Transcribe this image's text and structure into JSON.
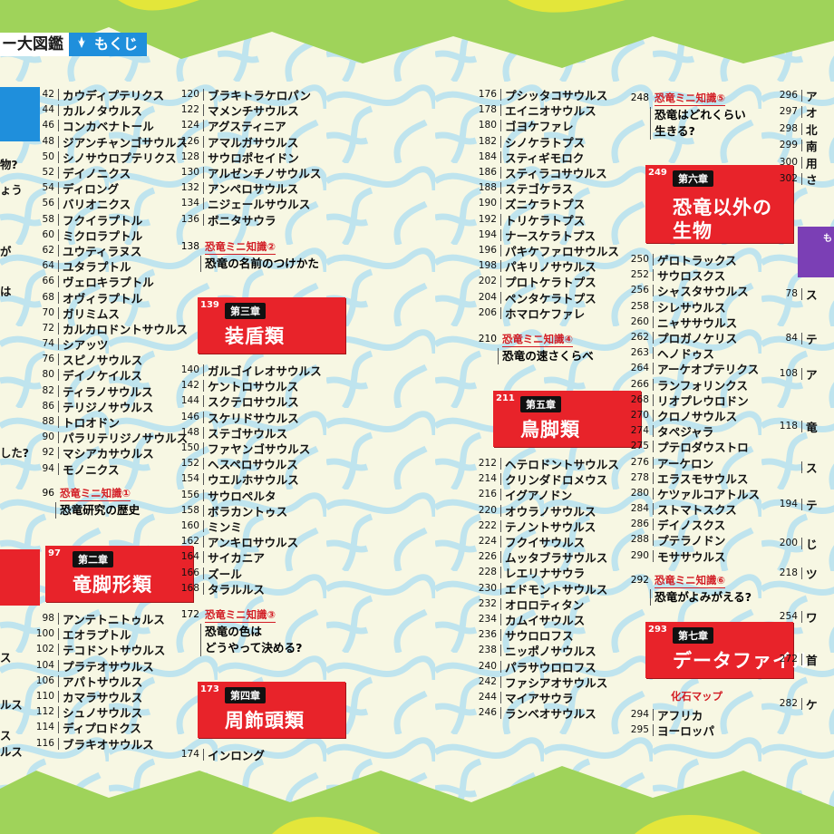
{
  "header": {
    "book_title": "ー大図鑑",
    "contents_label": "もくじ",
    "icon": "dino-foot-icon"
  },
  "left_edge": [
    "物?",
    "ょう",
    "が",
    "は",
    "した?",
    "ス",
    "ルス",
    "ス",
    "ルス"
  ],
  "right_edge": {
    "pages": [
      "296",
      "297",
      "298",
      "299",
      "300",
      "302"
    ],
    "texts": [
      "ア",
      "オ",
      "北",
      "南",
      "用",
      "さ"
    ],
    "lower": [
      {
        "p": "78",
        "t": "ス"
      },
      {
        "p": "84",
        "t": "テ"
      },
      {
        "p": "108",
        "t": "ア"
      },
      {
        "p": "118",
        "t": "竜"
      },
      {
        "p": "",
        "t": "ス"
      },
      {
        "p": "194",
        "t": "テ"
      },
      {
        "p": "200",
        "t": "じ"
      },
      {
        "p": "218",
        "t": "ツ"
      },
      {
        "p": "254",
        "t": "ワ"
      },
      {
        "p": "272",
        "t": "首"
      },
      {
        "p": "282",
        "t": "ケ"
      }
    ],
    "purple_label": "も"
  },
  "col1": [
    {
      "p": "42",
      "t": "カウディプテリクス"
    },
    {
      "p": "44",
      "t": "カルノタウルス"
    },
    {
      "p": "46",
      "t": "コンカベナトール"
    },
    {
      "p": "48",
      "t": "ジアンチャンゴサウルス"
    },
    {
      "p": "50",
      "t": "シノサウロプテリクス"
    },
    {
      "p": "52",
      "t": "デイノニクス"
    },
    {
      "p": "54",
      "t": "ディロング"
    },
    {
      "p": "56",
      "t": "バリオニクス"
    },
    {
      "p": "58",
      "t": "フクイラプトル"
    },
    {
      "p": "60",
      "t": "ミクロラプトル"
    },
    {
      "p": "62",
      "t": "ユウティラヌス"
    },
    {
      "p": "64",
      "t": "ユタラプトル"
    },
    {
      "p": "66",
      "t": "ヴェロキラプトル"
    },
    {
      "p": "68",
      "t": "オヴィラプトル"
    },
    {
      "p": "70",
      "t": "ガリミムス"
    },
    {
      "p": "72",
      "t": "カルカロドントサウルス"
    },
    {
      "p": "74",
      "t": "シアッツ"
    },
    {
      "p": "76",
      "t": "スピノサウルス"
    },
    {
      "p": "80",
      "t": "デイノケイルス"
    },
    {
      "p": "82",
      "t": "ティラノサウルス"
    },
    {
      "p": "86",
      "t": "テリジノサウルス"
    },
    {
      "p": "88",
      "t": "トロオドン"
    },
    {
      "p": "90",
      "t": "パラリテリジノサウルス"
    },
    {
      "p": "92",
      "t": "マシアカサウルス"
    },
    {
      "p": "94",
      "t": "モノニクス"
    }
  ],
  "col1_mini": {
    "p": "96",
    "label": "恐竜ミニ知識①",
    "text": "恐竜研究の歴史"
  },
  "ch2": {
    "num": "97",
    "badge": "第二章",
    "title": "竜脚形類"
  },
  "col1b": [
    {
      "p": "98",
      "t": "アンテトニトゥルス"
    },
    {
      "p": "100",
      "t": "エオラプトル"
    },
    {
      "p": "102",
      "t": "テコドントサウルス"
    },
    {
      "p": "104",
      "t": "プラテオサウルス"
    },
    {
      "p": "106",
      "t": "アパトサウルス"
    },
    {
      "p": "110",
      "t": "カマラサウルス"
    },
    {
      "p": "112",
      "t": "シュノサウルス"
    },
    {
      "p": "114",
      "t": "ディプロドクス"
    },
    {
      "p": "116",
      "t": "ブラキオサウルス"
    }
  ],
  "col2": [
    {
      "p": "120",
      "t": "ブラキトラケロパン"
    },
    {
      "p": "122",
      "t": "マメンチサウルス"
    },
    {
      "p": "124",
      "t": "アグスティニア"
    },
    {
      "p": "126",
      "t": "アマルガサウルス"
    },
    {
      "p": "128",
      "t": "サウロポセイドン"
    },
    {
      "p": "130",
      "t": "アルゼンチノサウルス"
    },
    {
      "p": "132",
      "t": "アンペロサウルス"
    },
    {
      "p": "134",
      "t": "ニジェールサウルス"
    },
    {
      "p": "136",
      "t": "ボニタサウラ"
    }
  ],
  "col2_mini": {
    "p": "138",
    "label": "恐竜ミニ知識②",
    "text": "恐竜の名前のつけかた"
  },
  "ch3": {
    "num": "139",
    "badge": "第三章",
    "title": "装盾類"
  },
  "col2b": [
    {
      "p": "140",
      "t": "ガルゴイレオサウルス"
    },
    {
      "p": "142",
      "t": "ケントロサウルス"
    },
    {
      "p": "144",
      "t": "スクテロサウルス"
    },
    {
      "p": "146",
      "t": "スケリドサウルス"
    },
    {
      "p": "148",
      "t": "ステゴサウルス"
    },
    {
      "p": "150",
      "t": "ファヤンゴサウルス"
    },
    {
      "p": "152",
      "t": "ヘスペロサウルス"
    },
    {
      "p": "154",
      "t": "ウエルホサウルス"
    },
    {
      "p": "156",
      "t": "サウロペルタ"
    },
    {
      "p": "158",
      "t": "ボラカントゥス"
    },
    {
      "p": "160",
      "t": "ミンミ"
    },
    {
      "p": "162",
      "t": "アンキロサウルス"
    },
    {
      "p": "164",
      "t": "サイカニア"
    },
    {
      "p": "166",
      "t": "ズール"
    },
    {
      "p": "168",
      "t": "タラルルス"
    }
  ],
  "col2_mini2": {
    "p": "172",
    "label": "恐竜ミニ知識③",
    "text1": "恐竜の色は",
    "text2": "どうやって決める?"
  },
  "ch4": {
    "num": "173",
    "badge": "第四章",
    "title": "周飾頭類"
  },
  "col2c": [
    {
      "p": "174",
      "t": "インロング"
    }
  ],
  "col3": [
    {
      "p": "176",
      "t": "プシッタコサウルス"
    },
    {
      "p": "178",
      "t": "エイニオサウルス"
    },
    {
      "p": "180",
      "t": "ゴヨケファレ"
    },
    {
      "p": "182",
      "t": "シノケラトプス"
    },
    {
      "p": "184",
      "t": "スティギモロク"
    },
    {
      "p": "186",
      "t": "スティラコサウルス"
    },
    {
      "p": "188",
      "t": "ステゴケラス"
    },
    {
      "p": "190",
      "t": "ズニケラトプス"
    },
    {
      "p": "192",
      "t": "トリケラトプス"
    },
    {
      "p": "194",
      "t": "ナースケラトプス"
    },
    {
      "p": "196",
      "t": "パキケファロサウルス"
    },
    {
      "p": "198",
      "t": "パキリノサウルス"
    },
    {
      "p": "202",
      "t": "プロトケラトプス"
    },
    {
      "p": "204",
      "t": "ペンタケラトプス"
    },
    {
      "p": "206",
      "t": "ホマロケファレ"
    }
  ],
  "col3_mini": {
    "p": "210",
    "label": "恐竜ミニ知識④",
    "text": "恐竜の速さくらべ"
  },
  "ch5": {
    "num": "211",
    "badge": "第五章",
    "title": "鳥脚類"
  },
  "col3b": [
    {
      "p": "212",
      "t": "ヘテロドントサウルス"
    },
    {
      "p": "214",
      "t": "クリンダドロメウス"
    },
    {
      "p": "216",
      "t": "イグアノドン"
    },
    {
      "p": "220",
      "t": "オウラノサウルス"
    },
    {
      "p": "222",
      "t": "テノントサウルス"
    },
    {
      "p": "224",
      "t": "フクイサウルス"
    },
    {
      "p": "226",
      "t": "ムッタブラサウルス"
    },
    {
      "p": "228",
      "t": "レエリナサウラ"
    },
    {
      "p": "230",
      "t": "エドモントサウルス"
    },
    {
      "p": "232",
      "t": "オロロティタン"
    },
    {
      "p": "234",
      "t": "カムイサウルス"
    },
    {
      "p": "236",
      "t": "サウロロフス"
    },
    {
      "p": "238",
      "t": "ニッポノサウルス"
    },
    {
      "p": "240",
      "t": "パラサウロロフス"
    },
    {
      "p": "242",
      "t": "ファシアオサウルス"
    },
    {
      "p": "244",
      "t": "マイアサウラ"
    },
    {
      "p": "246",
      "t": "ランベオサウルス"
    }
  ],
  "col4_mini": {
    "p": "248",
    "label": "恐竜ミニ知識⑤",
    "text1": "恐竜はどれくらい",
    "text2": "生きる?"
  },
  "ch6": {
    "num": "249",
    "badge": "第六章",
    "title1": "恐竜以外の",
    "title2": "生物"
  },
  "col4": [
    {
      "p": "250",
      "t": "ゲロトラックス"
    },
    {
      "p": "252",
      "t": "サウロスクス"
    },
    {
      "p": "256",
      "t": "シャスタサウルス"
    },
    {
      "p": "258",
      "t": "シレサウルス"
    },
    {
      "p": "260",
      "t": "ニャササウルス"
    },
    {
      "p": "262",
      "t": "プロガノケリス"
    },
    {
      "p": "263",
      "t": "ヘノドゥス"
    },
    {
      "p": "264",
      "t": "アーケオプテリクス"
    },
    {
      "p": "266",
      "t": "ランフォリンクス"
    },
    {
      "p": "268",
      "t": "リオプレウロドン"
    },
    {
      "p": "270",
      "t": "クロノサウルス"
    },
    {
      "p": "274",
      "t": "タペジャラ"
    },
    {
      "p": "275",
      "t": "プテロダウストロ"
    },
    {
      "p": "276",
      "t": "アーケロン"
    },
    {
      "p": "278",
      "t": "エラスモサウルス"
    },
    {
      "p": "280",
      "t": "ケツァルコアトルス"
    },
    {
      "p": "284",
      "t": "ストマトスクス"
    },
    {
      "p": "286",
      "t": "デイノスクス"
    },
    {
      "p": "288",
      "t": "プテラノドン"
    },
    {
      "p": "290",
      "t": "モササウルス"
    }
  ],
  "col4_mini2": {
    "p": "292",
    "label": "恐竜ミニ知識⑥",
    "text": "恐竜がよみがえる?"
  },
  "ch7": {
    "num": "293",
    "badge": "第七章",
    "title": "データファイル"
  },
  "col4_fossil": {
    "label": "化石マップ"
  },
  "col4b": [
    {
      "p": "294",
      "t": "アフリカ"
    },
    {
      "p": "295",
      "t": "ヨーロッパ"
    }
  ]
}
